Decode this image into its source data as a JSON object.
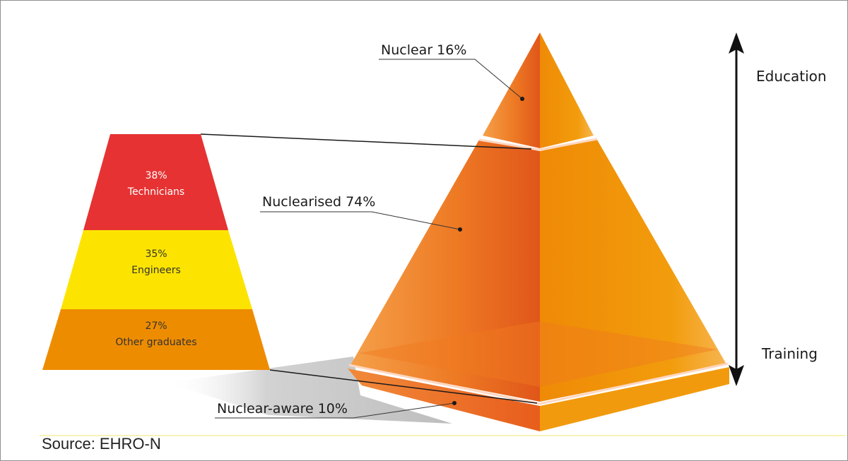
{
  "breakdown": {
    "segments": [
      {
        "percent": "38%",
        "label": "Technicians",
        "color": "#e63232",
        "text_color": "#ffffff"
      },
      {
        "percent": "35%",
        "label": "Engineers",
        "color": "#fce400",
        "text_color": "#333333"
      },
      {
        "percent": "27%",
        "label": "Other graduates",
        "color": "#ee8c00",
        "text_color": "#333333"
      }
    ]
  },
  "pyramid": {
    "tiers": [
      {
        "label": "Nuclear 16%"
      },
      {
        "label": "Nuclearised 74%"
      },
      {
        "label": "Nuclear-aware 10%"
      }
    ],
    "colors": {
      "left_face": "#ee6a1c",
      "right_face": "#f39a0a",
      "band": "#ffd7c0"
    }
  },
  "axis": {
    "top_label": "Education",
    "bottom_label": "Training"
  },
  "source": "Source: EHRO-N"
}
